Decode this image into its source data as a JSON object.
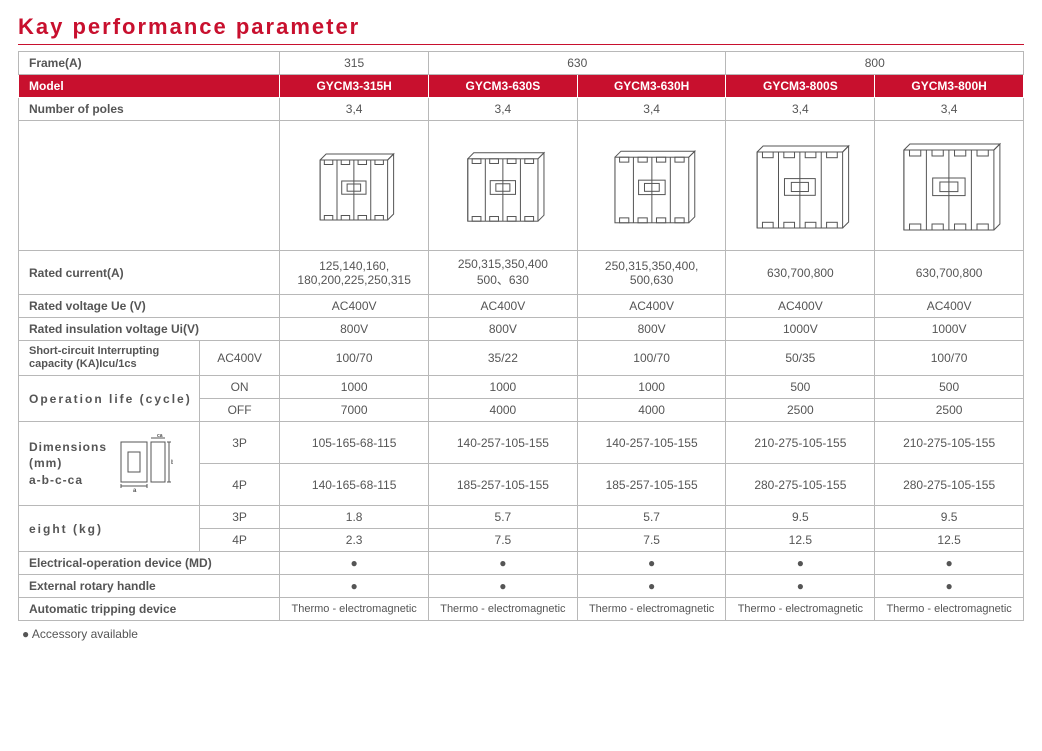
{
  "title": "Kay performance parameter",
  "footnote": "● Accessory available",
  "colors": {
    "accent": "#c8102e",
    "header_text": "#ffffff",
    "border": "#b8b8b8",
    "text": "#555555",
    "background": "#ffffff"
  },
  "columns_layout": {
    "label_col_width_pct": 18,
    "sublabel_col_width_pct": 8,
    "data_col_count": 5
  },
  "frames": {
    "label": "Frame(A)",
    "groups": [
      {
        "label": "315",
        "span": 1
      },
      {
        "label": "630",
        "span": 2
      },
      {
        "label": "800",
        "span": 2
      }
    ]
  },
  "model_row": {
    "label": "Model",
    "values": [
      "GYCM3-315H",
      "GYCM3-630S",
      "GYCM3-630H",
      "GYCM3-800S",
      "GYCM3-800H"
    ]
  },
  "poles_row": {
    "label": "Number of poles",
    "values": [
      "3,4",
      "3,4",
      "3,4",
      "3,4",
      "3,4"
    ]
  },
  "image_row": {
    "label": "",
    "breaker_scale": [
      0.75,
      0.78,
      0.82,
      0.95,
      1.0
    ]
  },
  "rated_current": {
    "label": "Rated current(A)",
    "values": [
      "125,140,160,\n180,200,225,250,315",
      "250,315,350,400\n500、630",
      "250,315,350,400,\n500,630",
      "630,700,800",
      "630,700,800"
    ]
  },
  "rated_voltage": {
    "label": "Rated voltage Ue (V)",
    "values": [
      "AC400V",
      "AC400V",
      "AC400V",
      "AC400V",
      "AC400V"
    ]
  },
  "rated_insulation": {
    "label": "Rated insulation voltage Ui(V)",
    "values": [
      "800V",
      "800V",
      "800V",
      "1000V",
      "1000V"
    ]
  },
  "short_circuit": {
    "label": "Short-circuit Interrupting\ncapacity (KA)Icu/1cs",
    "sublabel": "AC400V",
    "values": [
      "100/70",
      "35/22",
      "100/70",
      "50/35",
      "100/70"
    ]
  },
  "operation_life": {
    "label": "Operation life (cycle)",
    "rows": [
      {
        "sublabel": "ON",
        "values": [
          "1000",
          "1000",
          "1000",
          "500",
          "500"
        ]
      },
      {
        "sublabel": "OFF",
        "values": [
          "7000",
          "4000",
          "4000",
          "2500",
          "2500"
        ]
      }
    ]
  },
  "dimensions": {
    "label_lines": [
      "Dimensions",
      "(mm)",
      "a-b-c-ca"
    ],
    "rows": [
      {
        "sublabel": "3P",
        "values": [
          "105-165-68-115",
          "140-257-105-155",
          "140-257-105-155",
          "210-275-105-155",
          "210-275-105-155"
        ]
      },
      {
        "sublabel": "4P",
        "values": [
          "140-165-68-115",
          "185-257-105-155",
          "185-257-105-155",
          "280-275-105-155",
          "280-275-105-155"
        ]
      }
    ]
  },
  "weight": {
    "label": "eight (kg)",
    "rows": [
      {
        "sublabel": "3P",
        "values": [
          "1.8",
          "5.7",
          "5.7",
          "9.5",
          "9.5"
        ]
      },
      {
        "sublabel": "4P",
        "values": [
          "2.3",
          "7.5",
          "7.5",
          "12.5",
          "12.5"
        ]
      }
    ]
  },
  "simple_rows": [
    {
      "label": "Electrical-operation device (MD)",
      "values": [
        "●",
        "●",
        "●",
        "●",
        "●"
      ]
    },
    {
      "label": "External rotary handle",
      "values": [
        "●",
        "●",
        "●",
        "●",
        "●"
      ]
    },
    {
      "label": "Automatic tripping device",
      "values": [
        "Thermo - electromagnetic",
        "Thermo - electromagnetic",
        "Thermo - electromagnetic",
        "Thermo - electromagnetic",
        "Thermo - electromagnetic"
      ]
    }
  ]
}
